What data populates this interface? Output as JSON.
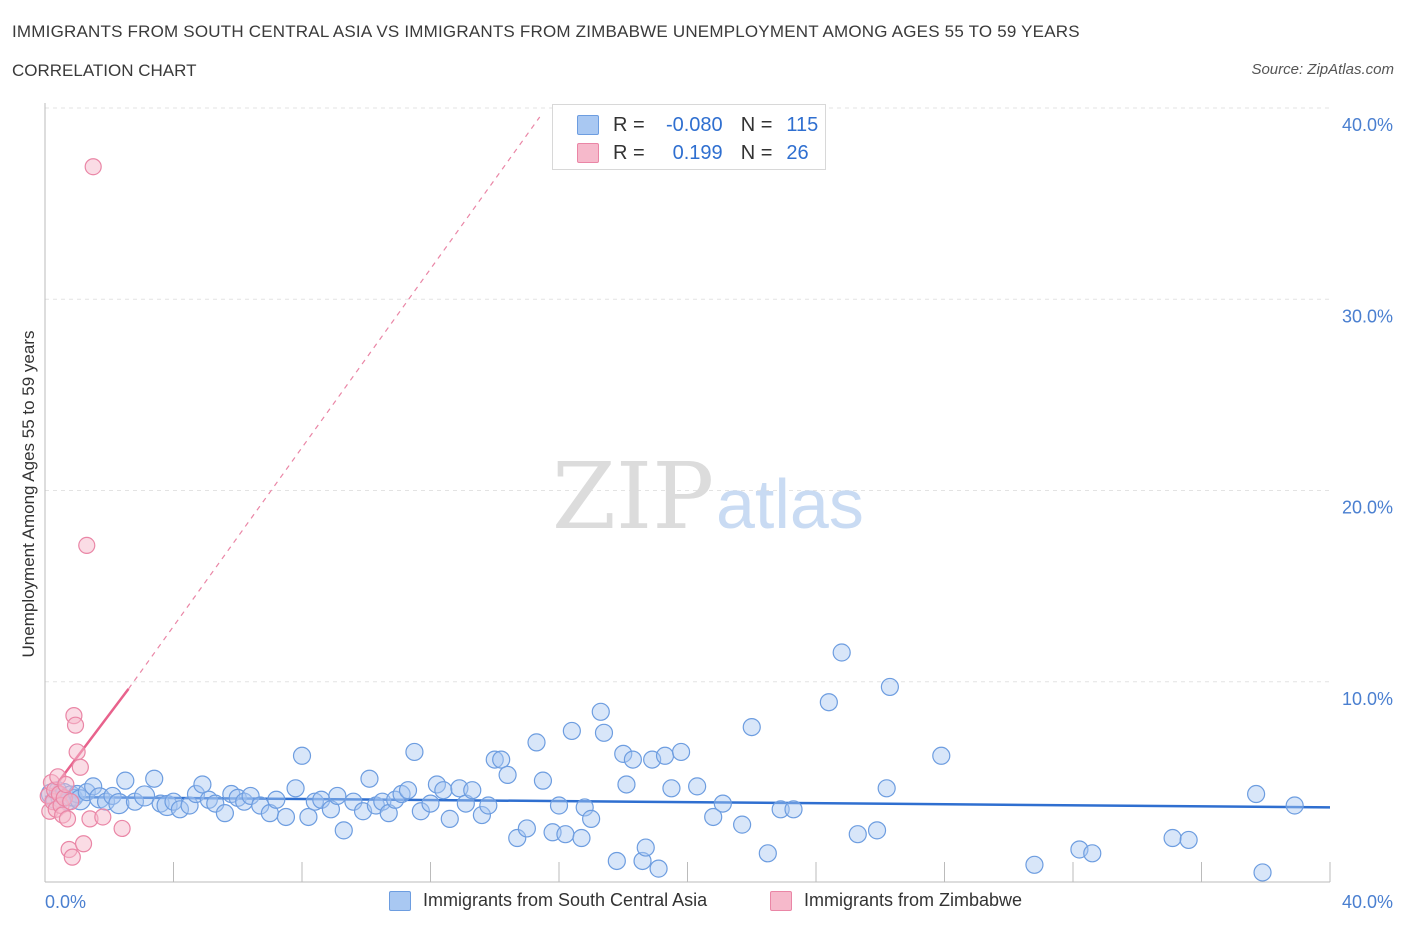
{
  "title": "IMMIGRANTS FROM SOUTH CENTRAL ASIA VS IMMIGRANTS FROM ZIMBABWE UNEMPLOYMENT AMONG AGES 55 TO 59 YEARS",
  "subtitle": "CORRELATION CHART",
  "source": "Source: ZipAtlas.com",
  "watermark": {
    "zip": "ZIP",
    "atlas": "atlas"
  },
  "colors": {
    "blue_fill": "#a9c8f2",
    "blue_stroke": "#6d9de0",
    "blue_line": "#2f6fd0",
    "pink_fill": "#f6b9cb",
    "pink_stroke": "#ea86a6",
    "pink_line": "#e8628c",
    "grid": "#e3e3e3",
    "tick_text": "#4a7fd0"
  },
  "legend": {
    "rows": [
      {
        "r_label": "R =",
        "r_value": "-0.080",
        "n_label": "N =",
        "n_value": "115"
      },
      {
        "r_label": "R =",
        "r_value": "0.199",
        "n_label": "N =",
        "n_value": "26"
      }
    ]
  },
  "bottom_legend": {
    "series1": "Immigrants from South Central Asia",
    "series2": "Immigrants from Zimbabwe"
  },
  "chart_data": {
    "type": "scatter",
    "xlabel": "",
    "ylabel": "Unemployment Among Ages 55 to 59 years",
    "xlim": [
      0,
      40
    ],
    "ylim": [
      0,
      40
    ],
    "x_tick_labels": [
      "0.0%",
      "40.0%"
    ],
    "y_ticks": [
      10,
      20,
      30,
      40
    ],
    "y_tick_labels": [
      "10.0%",
      "20.0%",
      "30.0%",
      "40.0%"
    ],
    "grid": true,
    "series": [
      {
        "name": "Immigrants from South Central Asia",
        "R": -0.08,
        "N": 115,
        "trend": {
          "x0": 0,
          "y0": 4.45,
          "x1": 40,
          "y1": 3.9
        },
        "points": [
          [
            0.2,
            4.6
          ],
          [
            0.3,
            4.3
          ],
          [
            0.4,
            4.8
          ],
          [
            0.5,
            4.4
          ],
          [
            0.6,
            4.7
          ],
          [
            0.7,
            4.2
          ],
          [
            0.8,
            4.5
          ],
          [
            0.9,
            4.4
          ],
          [
            1.0,
            4.6
          ],
          [
            1.1,
            4.3
          ],
          [
            1.3,
            4.7
          ],
          [
            1.5,
            5.0
          ],
          [
            1.7,
            4.4
          ],
          [
            1.9,
            4.2
          ],
          [
            2.1,
            4.5
          ],
          [
            2.3,
            4.1
          ],
          [
            2.5,
            5.3
          ],
          [
            2.8,
            4.2
          ],
          [
            3.1,
            4.5
          ],
          [
            3.4,
            5.4
          ],
          [
            3.6,
            4.1
          ],
          [
            3.8,
            4.0
          ],
          [
            4.0,
            4.2
          ],
          [
            4.2,
            3.8
          ],
          [
            4.5,
            4.0
          ],
          [
            4.7,
            4.6
          ],
          [
            4.9,
            5.1
          ],
          [
            5.1,
            4.3
          ],
          [
            5.3,
            4.1
          ],
          [
            5.6,
            3.6
          ],
          [
            5.8,
            4.6
          ],
          [
            6.0,
            4.4
          ],
          [
            6.2,
            4.2
          ],
          [
            6.4,
            4.5
          ],
          [
            6.7,
            4.0
          ],
          [
            7.0,
            3.6
          ],
          [
            7.2,
            4.3
          ],
          [
            7.5,
            3.4
          ],
          [
            7.8,
            4.9
          ],
          [
            8.0,
            6.6
          ],
          [
            8.2,
            3.4
          ],
          [
            8.4,
            4.2
          ],
          [
            8.6,
            4.3
          ],
          [
            8.9,
            3.8
          ],
          [
            9.1,
            4.5
          ],
          [
            9.3,
            2.7
          ],
          [
            9.6,
            4.2
          ],
          [
            9.9,
            3.7
          ],
          [
            10.1,
            5.4
          ],
          [
            10.3,
            4.0
          ],
          [
            10.5,
            4.2
          ],
          [
            10.7,
            3.6
          ],
          [
            10.9,
            4.3
          ],
          [
            11.1,
            4.6
          ],
          [
            11.3,
            4.8
          ],
          [
            11.5,
            6.8
          ],
          [
            11.7,
            3.7
          ],
          [
            12.0,
            4.1
          ],
          [
            12.2,
            5.1
          ],
          [
            12.4,
            4.8
          ],
          [
            12.6,
            3.3
          ],
          [
            12.9,
            4.9
          ],
          [
            13.1,
            4.1
          ],
          [
            13.3,
            4.8
          ],
          [
            13.6,
            3.5
          ],
          [
            13.8,
            4.0
          ],
          [
            14.0,
            6.4
          ],
          [
            14.2,
            6.4
          ],
          [
            14.4,
            5.6
          ],
          [
            14.7,
            2.3
          ],
          [
            15.0,
            2.8
          ],
          [
            15.3,
            7.3
          ],
          [
            15.5,
            5.3
          ],
          [
            15.8,
            2.6
          ],
          [
            16.0,
            4.0
          ],
          [
            16.2,
            2.5
          ],
          [
            16.4,
            7.9
          ],
          [
            16.7,
            2.3
          ],
          [
            16.8,
            3.9
          ],
          [
            17.0,
            3.3
          ],
          [
            17.3,
            8.9
          ],
          [
            17.4,
            7.8
          ],
          [
            17.8,
            1.1
          ],
          [
            18.0,
            6.7
          ],
          [
            18.1,
            5.1
          ],
          [
            18.3,
            6.4
          ],
          [
            18.6,
            1.1
          ],
          [
            18.7,
            1.8
          ],
          [
            18.9,
            6.4
          ],
          [
            19.1,
            0.7
          ],
          [
            19.3,
            6.6
          ],
          [
            19.5,
            4.9
          ],
          [
            19.8,
            6.8
          ],
          [
            20.3,
            5.0
          ],
          [
            20.8,
            3.4
          ],
          [
            21.1,
            4.1
          ],
          [
            21.7,
            3.0
          ],
          [
            22.0,
            8.1
          ],
          [
            22.5,
            1.5
          ],
          [
            22.9,
            3.8
          ],
          [
            23.3,
            3.8
          ],
          [
            24.4,
            9.4
          ],
          [
            24.8,
            12.0
          ],
          [
            25.3,
            2.5
          ],
          [
            25.9,
            2.7
          ],
          [
            26.2,
            4.9
          ],
          [
            26.3,
            10.2
          ],
          [
            27.9,
            6.6
          ],
          [
            30.8,
            0.9
          ],
          [
            32.2,
            1.7
          ],
          [
            32.6,
            1.5
          ],
          [
            35.1,
            2.3
          ],
          [
            35.6,
            2.2
          ],
          [
            37.7,
            4.6
          ],
          [
            37.9,
            0.5
          ],
          [
            38.9,
            4.0
          ]
        ]
      },
      {
        "name": "Immigrants from Zimbabwe",
        "R": 0.199,
        "N": 26,
        "trend": {
          "x0": 0,
          "y0": 4.3,
          "x1": 2.6,
          "y1": 10.1
        },
        "trend_dashed": {
          "x0": 2.6,
          "y0": 10.1,
          "x1": 15.4,
          "y1": 40
        },
        "points": [
          [
            0.1,
            4.5
          ],
          [
            0.15,
            3.7
          ],
          [
            0.2,
            5.2
          ],
          [
            0.25,
            4.2
          ],
          [
            0.3,
            4.8
          ],
          [
            0.35,
            3.8
          ],
          [
            0.4,
            5.5
          ],
          [
            0.45,
            4.6
          ],
          [
            0.5,
            4.0
          ],
          [
            0.55,
            3.5
          ],
          [
            0.6,
            4.4
          ],
          [
            0.65,
            5.1
          ],
          [
            0.7,
            3.3
          ],
          [
            0.75,
            1.7
          ],
          [
            0.8,
            4.2
          ],
          [
            0.85,
            1.3
          ],
          [
            0.9,
            8.7
          ],
          [
            0.95,
            8.2
          ],
          [
            1.0,
            6.8
          ],
          [
            1.1,
            6.0
          ],
          [
            1.2,
            2.0
          ],
          [
            1.3,
            17.6
          ],
          [
            1.4,
            3.3
          ],
          [
            1.5,
            37.4
          ],
          [
            1.8,
            3.4
          ],
          [
            2.4,
            2.8
          ]
        ]
      }
    ]
  }
}
